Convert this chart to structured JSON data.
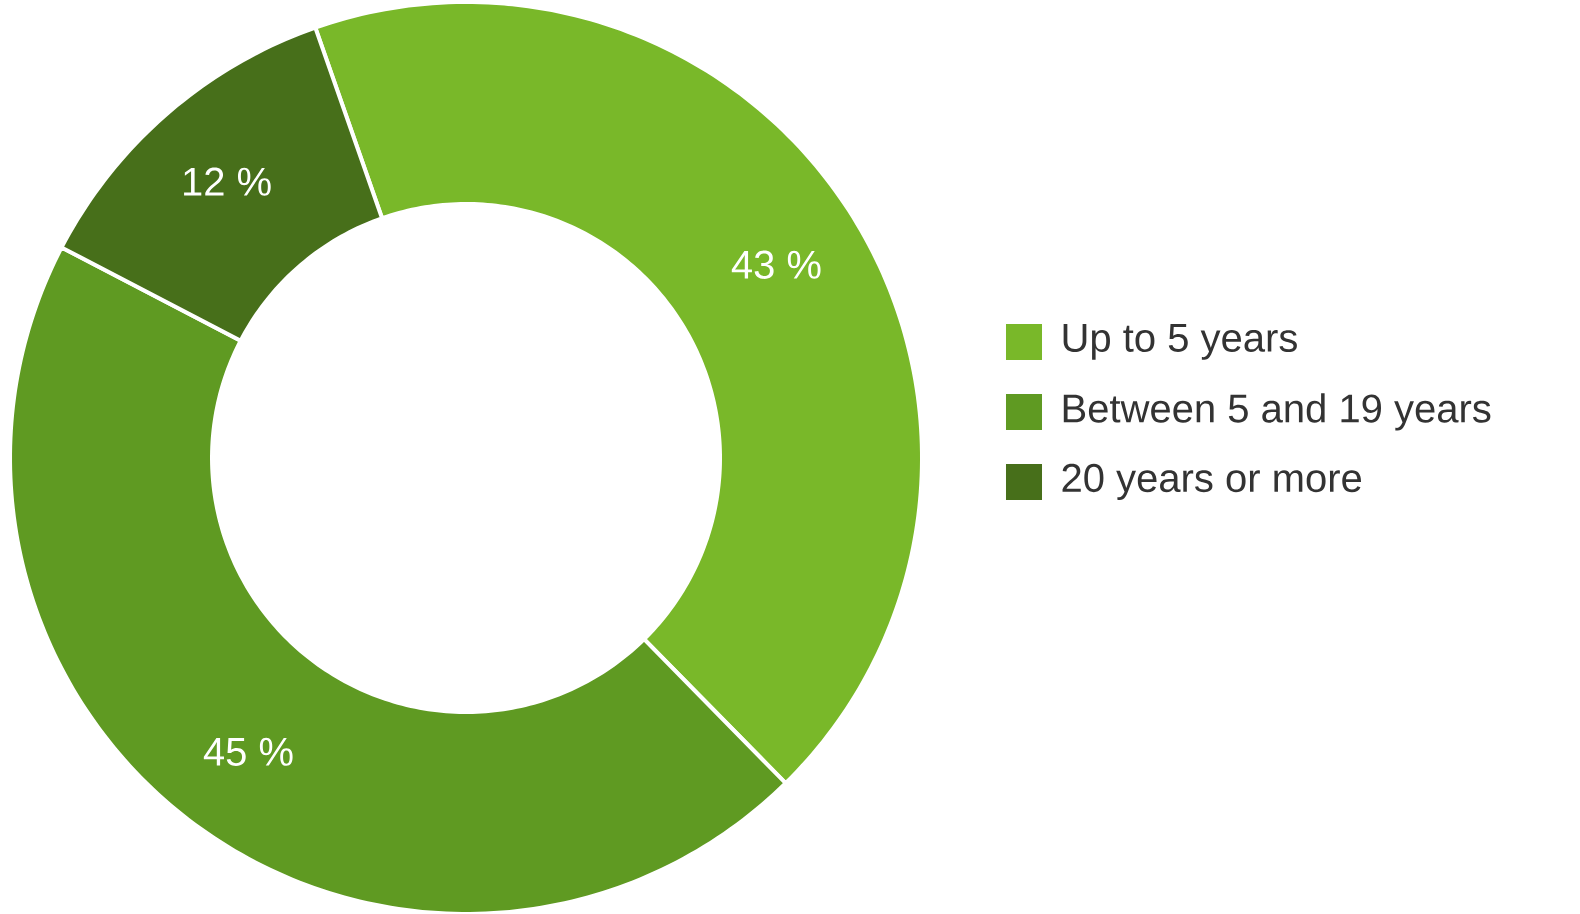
{
  "chart_data": {
    "type": "donut",
    "categories": [
      "Up to 5 years",
      "Between 5 and 19 years",
      "20 years or more"
    ],
    "values": [
      43,
      45,
      12
    ],
    "colors": [
      "#79b829",
      "#5f9a22",
      "#476f1a"
    ],
    "value_labels": [
      "43 %",
      "45 %",
      "12 %"
    ],
    "legend": "right"
  }
}
